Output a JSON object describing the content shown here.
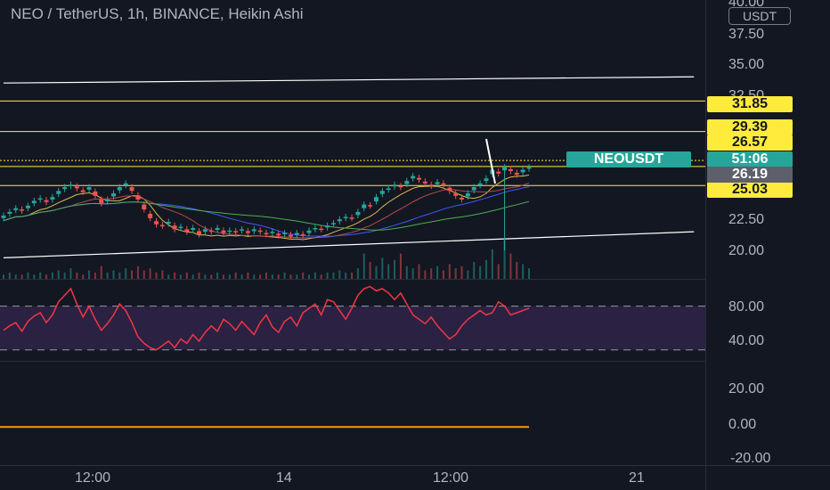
{
  "header": {
    "title": "NEO / TetherUS, 1h, BINANCE, Heikin Ashi"
  },
  "price_axis": {
    "unit": "USDT",
    "ticks": [
      "40.00",
      "37.50",
      "35.00",
      "32.50",
      "22.50",
      "20.00"
    ]
  },
  "indicator_axis": {
    "ticks": [
      "80.00",
      "40.00",
      "20.00",
      "0.00",
      "-20.00"
    ]
  },
  "time_axis": {
    "ticks": [
      "12:00",
      "14",
      "12:00",
      "21"
    ]
  },
  "level_labels": [
    "31.85",
    "29.39",
    "26.57",
    "25.03"
  ],
  "symbol_tag": {
    "name": "NEOUSDT",
    "countdown": "51:06",
    "price": "26.19"
  },
  "colors": {
    "background": "#131722",
    "up": "#26a69a",
    "down": "#ef5350",
    "level": "#ffeb3b",
    "channel": "#ffffff",
    "rsi": "#f23645",
    "rsi_band": "#4a2e6b"
  },
  "chart_data": [
    {
      "type": "candlestick",
      "title": "NEO / TetherUS, 1h, BINANCE, Heikin Ashi",
      "ylim": [
        17.5,
        40
      ],
      "x_ticks": [
        "12:00",
        "14",
        "12:00",
        "21"
      ],
      "horizontal_levels": [
        31.85,
        29.39,
        26.57,
        25.03
      ],
      "channel_lines": [
        {
          "from": [
            0,
            33.3
          ],
          "to": [
            113,
            33.8
          ]
        },
        {
          "from": [
            0,
            19.2
          ],
          "to": [
            113,
            21.3
          ]
        }
      ],
      "candles_close": [
        22.6,
        22.9,
        23.2,
        23.0,
        23.4,
        23.8,
        24.0,
        23.7,
        24.1,
        24.6,
        24.9,
        25.1,
        24.8,
        24.5,
        24.9,
        24.2,
        23.6,
        23.9,
        24.4,
        24.9,
        25.2,
        24.6,
        23.9,
        23.1,
        22.4,
        21.9,
        21.8,
        22.1,
        21.5,
        21.7,
        21.3,
        21.6,
        21.1,
        21.5,
        21.3,
        21.6,
        21.2,
        21.4,
        21.3,
        21.5,
        21.2,
        21.5,
        21.3,
        21.1,
        21.3,
        21.0,
        21.2,
        20.9,
        21.2,
        21.0,
        21.4,
        21.6,
        21.5,
        21.8,
        22.0,
        22.3,
        22.5,
        22.4,
        22.9,
        23.5,
        23.4,
        24.1,
        24.6,
        24.8,
        25.1,
        24.9,
        25.4,
        25.8,
        25.5,
        25.2,
        25.0,
        25.3,
        25.1,
        24.6,
        24.2,
        23.9,
        24.4,
        24.9,
        25.2,
        25.6,
        26.3,
        26.0,
        26.5,
        26.2,
        25.9,
        26.3,
        26.5
      ],
      "candles_up": [
        true,
        true,
        true,
        false,
        true,
        true,
        true,
        false,
        true,
        true,
        true,
        true,
        false,
        false,
        true,
        false,
        false,
        true,
        true,
        true,
        true,
        false,
        false,
        false,
        false,
        false,
        false,
        true,
        false,
        true,
        false,
        true,
        false,
        true,
        false,
        true,
        false,
        true,
        false,
        true,
        false,
        true,
        false,
        false,
        true,
        false,
        true,
        false,
        true,
        false,
        true,
        true,
        false,
        true,
        true,
        true,
        true,
        false,
        true,
        true,
        false,
        true,
        true,
        true,
        true,
        false,
        true,
        true,
        false,
        false,
        false,
        true,
        false,
        false,
        false,
        false,
        true,
        true,
        true,
        true,
        true,
        false,
        true,
        false,
        false,
        true,
        true
      ],
      "volume": [
        2,
        3,
        2,
        2,
        3,
        2,
        3,
        2,
        3,
        4,
        3,
        5,
        3,
        2,
        4,
        3,
        6,
        3,
        4,
        3,
        5,
        4,
        6,
        4,
        5,
        3,
        4,
        2,
        3,
        2,
        3,
        2,
        3,
        2,
        2,
        3,
        2,
        2,
        3,
        2,
        3,
        2,
        2,
        3,
        2,
        2,
        3,
        2,
        2,
        3,
        2,
        3,
        2,
        3,
        3,
        4,
        3,
        3,
        5,
        12,
        8,
        6,
        10,
        7,
        9,
        12,
        6,
        5,
        7,
        4,
        5,
        6,
        4,
        7,
        5,
        6,
        4,
        8,
        6,
        9,
        14,
        7,
        19,
        12,
        8,
        7,
        5
      ]
    },
    {
      "type": "line",
      "title": "",
      "ylim": [
        -20,
        100
      ],
      "y_ticks": [
        "80.00",
        "40.00",
        "20.00",
        "0.00",
        "-20.00"
      ],
      "rsi": [
        48,
        52,
        55,
        47,
        56,
        61,
        64,
        55,
        62,
        74,
        80,
        86,
        72,
        60,
        70,
        58,
        48,
        54,
        62,
        72,
        66,
        55,
        42,
        36,
        32,
        30,
        34,
        38,
        32,
        40,
        36,
        44,
        38,
        46,
        52,
        47,
        58,
        54,
        48,
        56,
        50,
        44,
        55,
        62,
        51,
        46,
        56,
        60,
        52,
        64,
        68,
        72,
        62,
        76,
        74,
        66,
        58,
        68,
        80,
        86,
        88,
        84,
        86,
        82,
        76,
        82,
        72,
        62,
        58,
        54,
        60,
        52,
        46,
        40,
        44,
        52,
        58,
        62,
        66,
        62,
        64,
        74,
        70,
        62,
        64,
        66,
        68
      ],
      "bands": [
        70,
        30
      ],
      "oscillator": 0
    }
  ]
}
